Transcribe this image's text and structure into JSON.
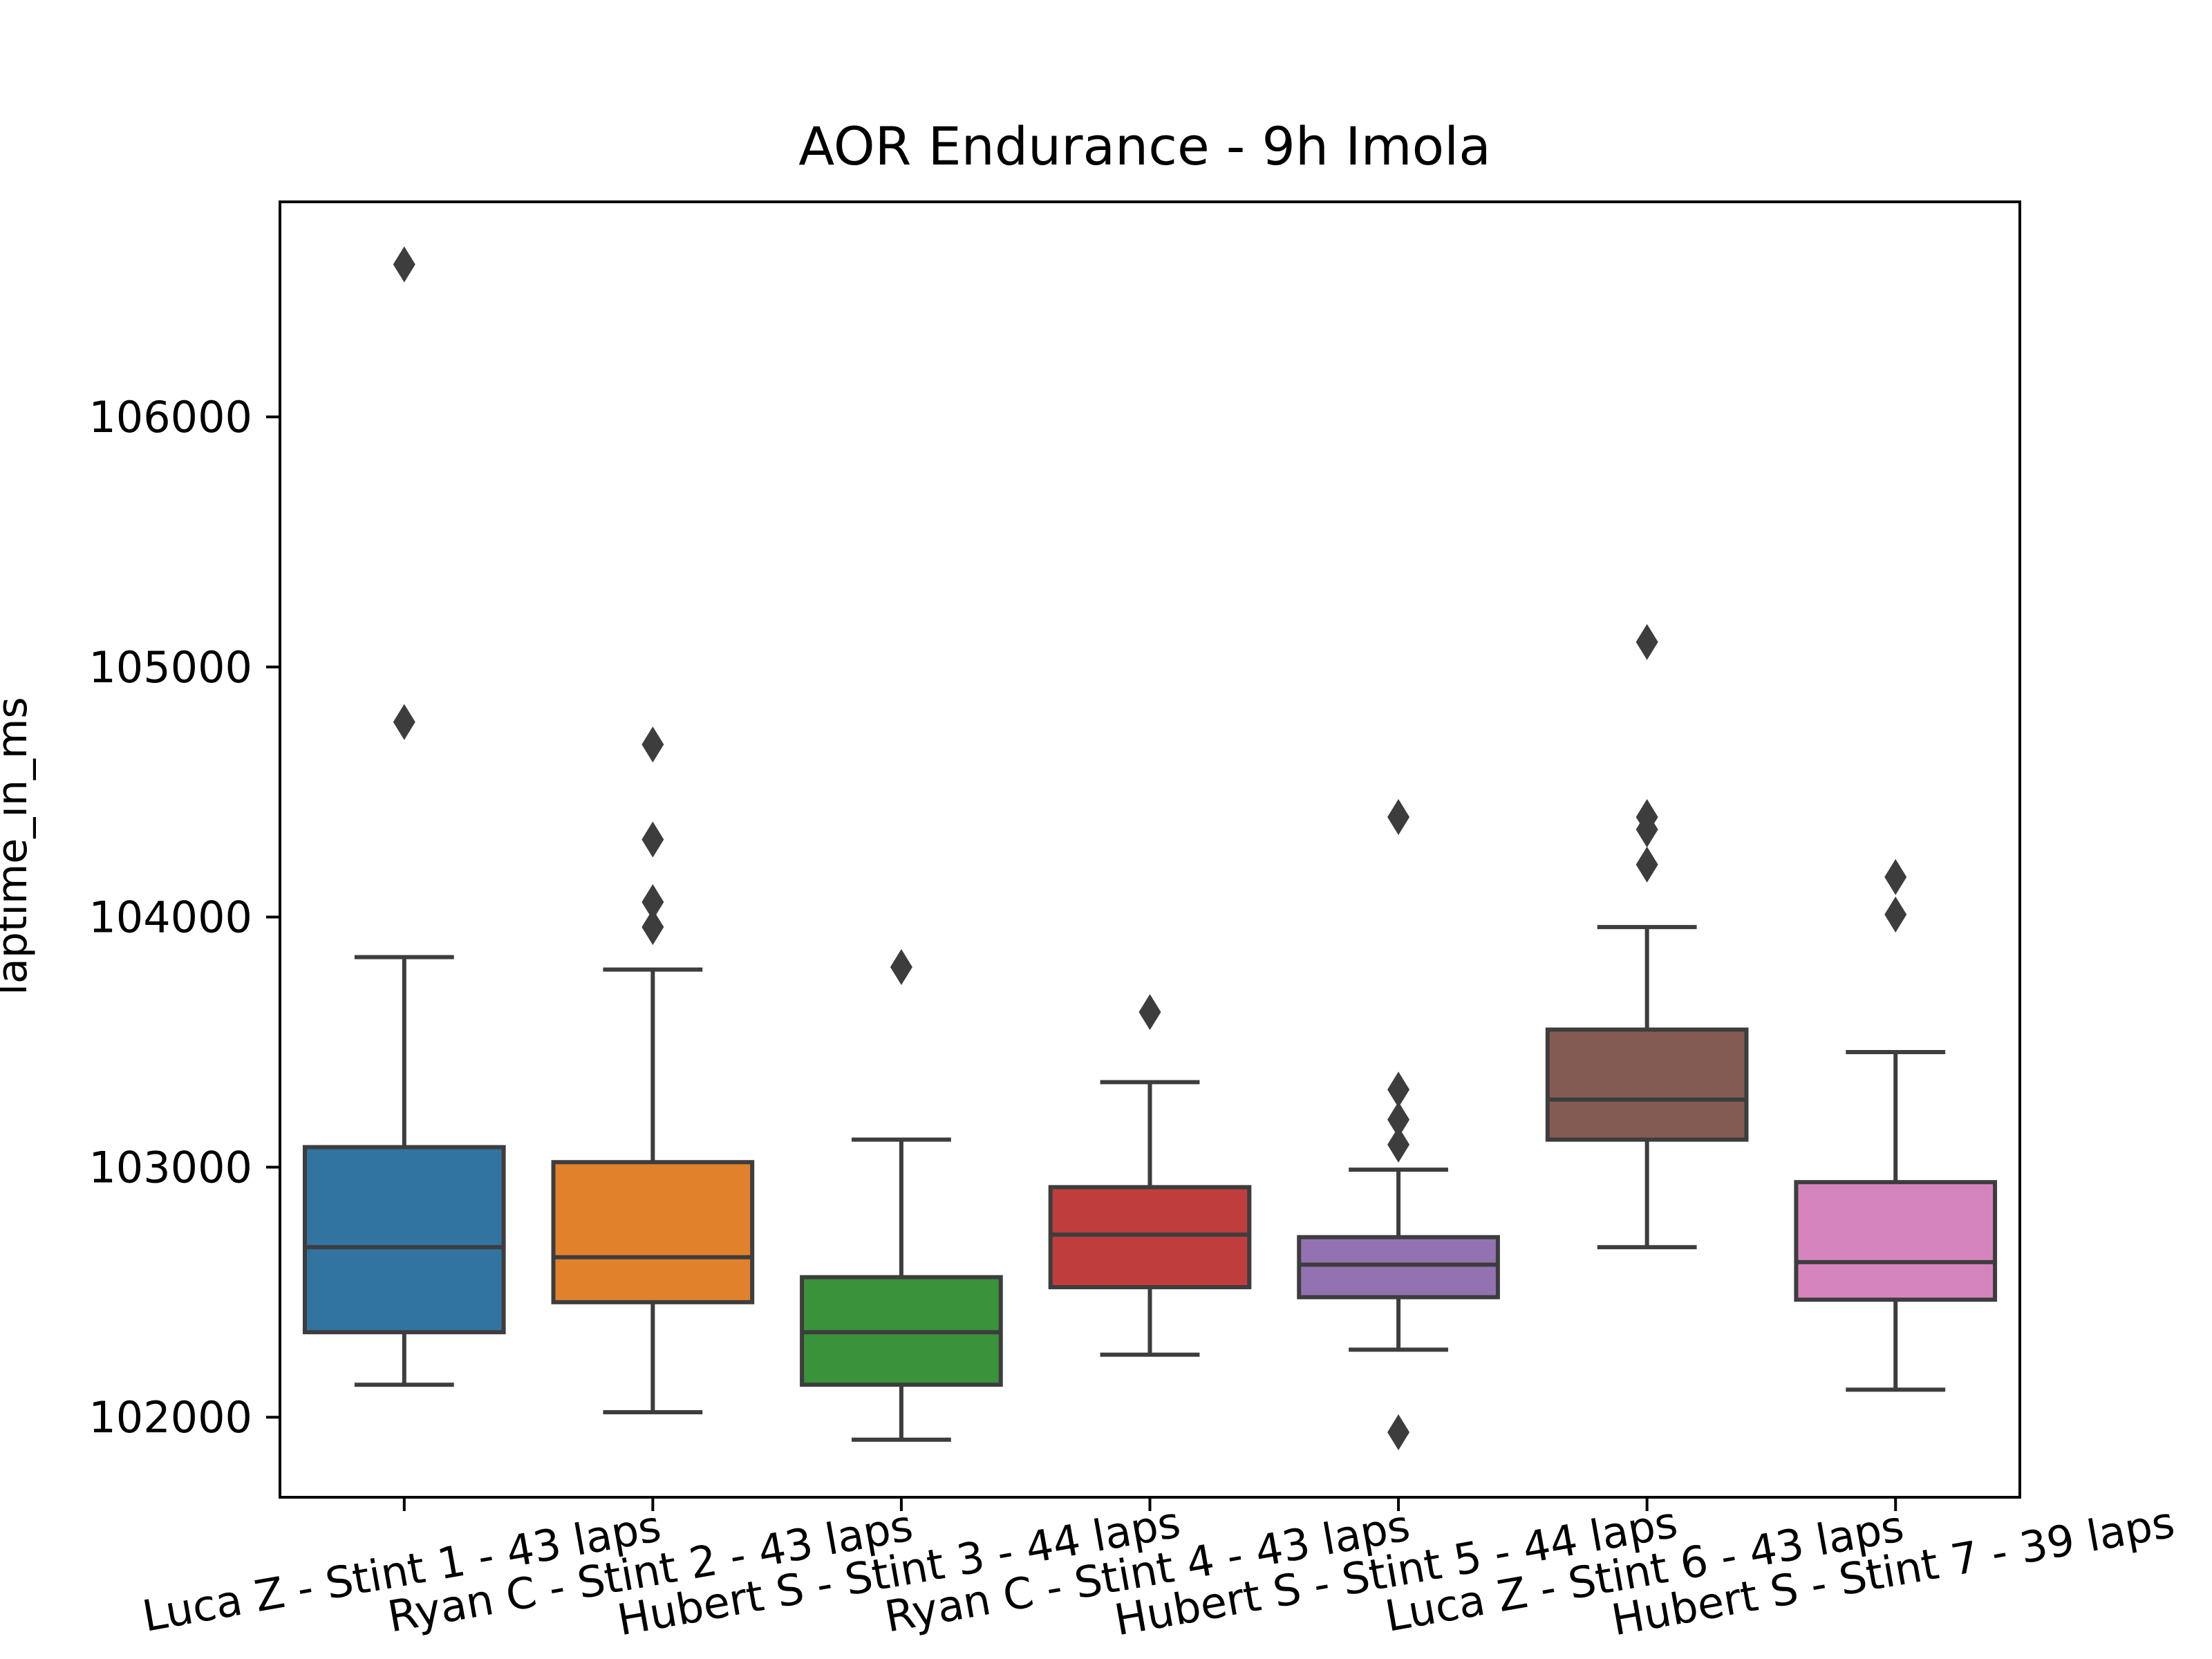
{
  "chart_data": {
    "type": "box",
    "title": "AOR Endurance - 9h Imola",
    "xlabel": "",
    "ylabel": "laptime_in_ms",
    "ylim": [
      101680,
      106860
    ],
    "yticks": [
      102000,
      103000,
      104000,
      105000,
      106000
    ],
    "grid": false,
    "categories": [
      "Luca Z - Stint 1 - 43 laps",
      "Ryan C - Stint 2 - 43 laps",
      "Hubert S - Stint 3 - 44 laps",
      "Ryan C - Stint 4 - 43 laps",
      "Hubert S - Stint 5 - 44 laps",
      "Luca Z - Stint 6 - 43 laps",
      "Hubert S - Stint 7 - 39 laps"
    ],
    "series": [
      {
        "whisker_low": 102130,
        "q1": 102340,
        "median": 102680,
        "q3": 103080,
        "whisker_high": 103840,
        "outliers": [
          104780,
          106610
        ],
        "color": "#3274a1"
      },
      {
        "whisker_low": 102020,
        "q1": 102460,
        "median": 102640,
        "q3": 103020,
        "whisker_high": 103790,
        "outliers": [
          103960,
          104060,
          104310,
          104690
        ],
        "color": "#e1812c"
      },
      {
        "whisker_low": 101910,
        "q1": 102130,
        "median": 102340,
        "q3": 102560,
        "whisker_high": 103110,
        "outliers": [
          103800
        ],
        "color": "#3a923a"
      },
      {
        "whisker_low": 102250,
        "q1": 102520,
        "median": 102730,
        "q3": 102920,
        "whisker_high": 103340,
        "outliers": [
          103620
        ],
        "color": "#c03d3e"
      },
      {
        "whisker_low": 102270,
        "q1": 102480,
        "median": 102610,
        "q3": 102720,
        "whisker_high": 102990,
        "outliers": [
          101940,
          103090,
          103190,
          103310,
          104400
        ],
        "color": "#9372b2"
      },
      {
        "whisker_low": 102680,
        "q1": 103110,
        "median": 103270,
        "q3": 103550,
        "whisker_high": 103960,
        "outliers": [
          104210,
          104350,
          104400,
          105100
        ],
        "color": "#845b53"
      },
      {
        "whisker_low": 102110,
        "q1": 102470,
        "median": 102620,
        "q3": 102940,
        "whisker_high": 103460,
        "outliers": [
          104010,
          104160
        ],
        "color": "#d684bd"
      }
    ],
    "line_color": "#3d3d3d"
  }
}
